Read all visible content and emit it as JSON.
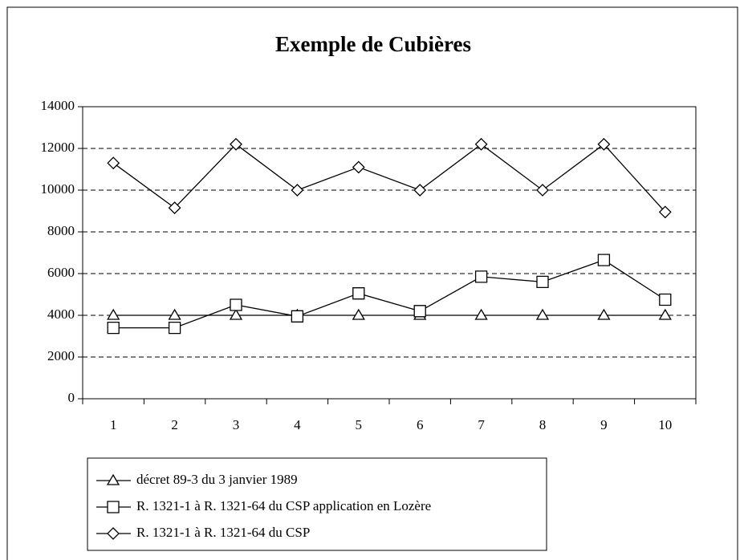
{
  "chart_data": {
    "type": "line",
    "title": "Exemple de Cubières",
    "categories": [
      "1",
      "2",
      "3",
      "4",
      "5",
      "6",
      "7",
      "8",
      "9",
      "10"
    ],
    "series": [
      {
        "name": "décret 89-3 du 3 janvier 1989",
        "color": "#000000",
        "marker": "triangle",
        "values": [
          4000,
          4000,
          4000,
          4000,
          4000,
          4000,
          4000,
          4000,
          4000,
          4000
        ]
      },
      {
        "name": "R. 1321-1 à R. 1321-64 du CSP application en Lozère",
        "color": "#000000",
        "marker": "square",
        "values": [
          3400,
          3400,
          4500,
          3950,
          5050,
          4200,
          5850,
          5600,
          6650,
          4750
        ]
      },
      {
        "name": "R. 1321-1 à R. 1321-64 du CSP",
        "color": "#000000",
        "marker": "diamond",
        "values": [
          11300,
          9150,
          12200,
          10000,
          11100,
          10000,
          12200,
          10000,
          12200,
          8950
        ]
      }
    ],
    "ylim": [
      0,
      14000
    ],
    "yticks": [
      0,
      2000,
      4000,
      6000,
      8000,
      10000,
      12000,
      14000
    ],
    "grid": true
  }
}
